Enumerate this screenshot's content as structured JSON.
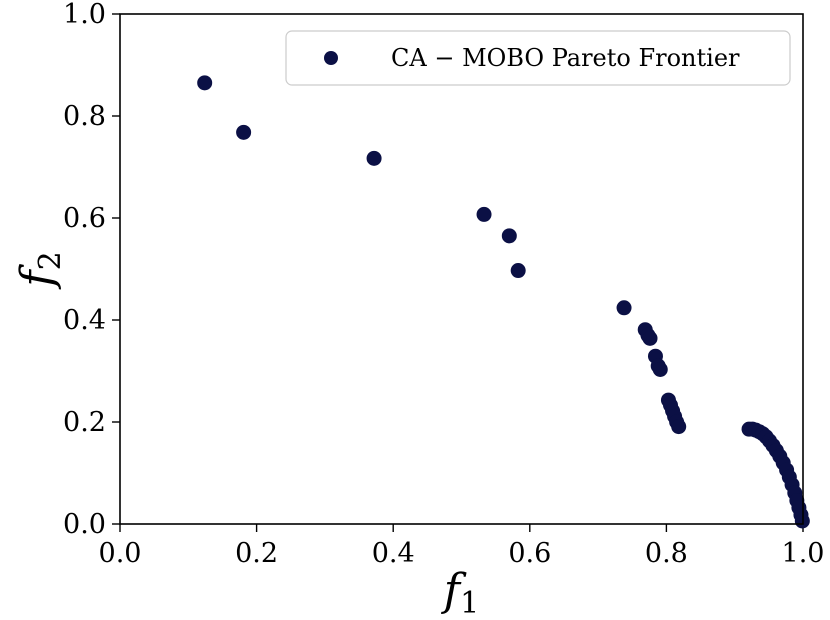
{
  "chart_data": {
    "type": "scatter",
    "xlabel": "f",
    "xlabel_sub": "1",
    "ylabel": "f",
    "ylabel_sub": "2",
    "xlim": [
      0.0,
      1.0
    ],
    "ylim": [
      0.0,
      1.0
    ],
    "xticks": [
      "0.0",
      "0.2",
      "0.4",
      "0.6",
      "0.8",
      "1.0"
    ],
    "yticks": [
      "0.0",
      "0.2",
      "0.4",
      "0.6",
      "0.8",
      "1.0"
    ],
    "grid": false,
    "legend_position": "top-right",
    "marker_color": "#0b1045",
    "series": [
      {
        "name": "CA − MOBO Pareto Frontier",
        "points": [
          [
            0.124,
            0.865
          ],
          [
            0.181,
            0.768
          ],
          [
            0.372,
            0.717
          ],
          [
            0.533,
            0.607
          ],
          [
            0.57,
            0.565
          ],
          [
            0.583,
            0.497
          ],
          [
            0.738,
            0.424
          ],
          [
            0.769,
            0.381
          ],
          [
            0.773,
            0.37
          ],
          [
            0.776,
            0.364
          ],
          [
            0.784,
            0.329
          ],
          [
            0.788,
            0.31
          ],
          [
            0.791,
            0.303
          ],
          [
            0.803,
            0.243
          ],
          [
            0.806,
            0.233
          ],
          [
            0.809,
            0.222
          ],
          [
            0.812,
            0.211
          ],
          [
            0.815,
            0.2
          ],
          [
            0.818,
            0.191
          ],
          [
            0.921,
            0.186
          ],
          [
            0.926,
            0.186
          ],
          [
            0.931,
            0.184
          ],
          [
            0.936,
            0.181
          ],
          [
            0.941,
            0.177
          ],
          [
            0.946,
            0.171
          ],
          [
            0.951,
            0.163
          ],
          [
            0.956,
            0.154
          ],
          [
            0.961,
            0.144
          ],
          [
            0.966,
            0.133
          ],
          [
            0.971,
            0.12
          ],
          [
            0.976,
            0.106
          ],
          [
            0.98,
            0.092
          ],
          [
            0.984,
            0.077
          ],
          [
            0.988,
            0.061
          ],
          [
            0.991,
            0.046
          ],
          [
            0.994,
            0.032
          ],
          [
            0.997,
            0.018
          ],
          [
            0.999,
            0.006
          ]
        ]
      }
    ]
  }
}
